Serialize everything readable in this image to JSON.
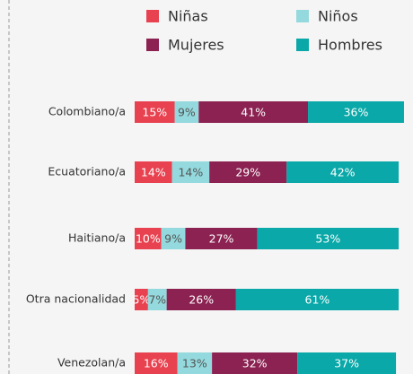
{
  "chart_data": {
    "type": "bar",
    "orientation": "horizontal",
    "stacked": true,
    "categories": [
      "Colombiano/a",
      "Ecuatoriano/a",
      "Haitiano/a",
      "Otra nacionalidad",
      "Venezolan/a"
    ],
    "series": [
      {
        "name": "Niñas",
        "color": "#e8414f",
        "values": [
          15,
          14,
          10,
          5,
          16
        ],
        "value_labels": [
          "15%",
          "14%",
          "10%",
          "5%",
          "16%"
        ]
      },
      {
        "name": "Niños",
        "color": "#93d9dd",
        "values": [
          9,
          14,
          9,
          7,
          13
        ],
        "value_labels": [
          "9%",
          "14%",
          "9%",
          "7%",
          "13%"
        ]
      },
      {
        "name": "Mujeres",
        "color": "#8b2252",
        "values": [
          41,
          29,
          27,
          26,
          32
        ],
        "value_labels": [
          "41%",
          "29%",
          "27%",
          "26%",
          "32%"
        ]
      },
      {
        "name": "Hombres",
        "color": "#0aa8a8",
        "values": [
          36,
          42,
          53,
          61,
          37
        ],
        "value_labels": [
          "36%",
          "42%",
          "53%",
          "61%",
          "37%"
        ]
      }
    ]
  }
}
